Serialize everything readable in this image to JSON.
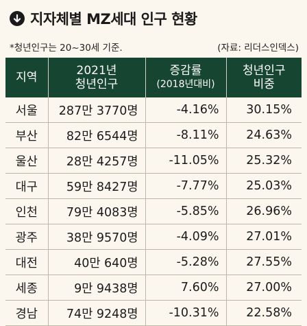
{
  "title": "지자체별 MZ세대 인구 현황",
  "note": "*청년인구는 20~30세 기준.",
  "source": "(자료: 리더스인덱스)",
  "headers": {
    "region": "지역",
    "pop_line1": "2021년",
    "pop_line2": "청년인구",
    "chg_line1": "증감률",
    "chg_line2": "(2018년대비)",
    "share_line1": "청년인구",
    "share_line2": "비중"
  },
  "rows": [
    {
      "region": "서울",
      "pop": "287만 3770명",
      "chg": "-4.16%",
      "share": "30.15%"
    },
    {
      "region": "부산",
      "pop": "82만 6544명",
      "chg": "-8.11%",
      "share": "24.63%"
    },
    {
      "region": "울산",
      "pop": "28만 4257명",
      "chg": "-11.05%",
      "share": "25.32%"
    },
    {
      "region": "대구",
      "pop": "59만 8427명",
      "chg": "-7.77%",
      "share": "25.03%"
    },
    {
      "region": "인천",
      "pop": "79만 4083명",
      "chg": "-5.85%",
      "share": "26.96%"
    },
    {
      "region": "광주",
      "pop": "38만 9570명",
      "chg": "-4.09%",
      "share": "27.01%"
    },
    {
      "region": "대전",
      "pop": "40만 640명",
      "chg": "-5.28%",
      "share": "27.55%"
    },
    {
      "region": "세종",
      "pop": "9만 9438명",
      "chg": "7.60%",
      "share": "27.00%"
    },
    {
      "region": "경남",
      "pop": "74만 9248명",
      "chg": "-10.31%",
      "share": "22.58%"
    }
  ],
  "icons": {
    "title": "down-arrow-circle-icon"
  },
  "colors": {
    "header_bg": "#164531",
    "page_bg": "#fbf7ee"
  }
}
